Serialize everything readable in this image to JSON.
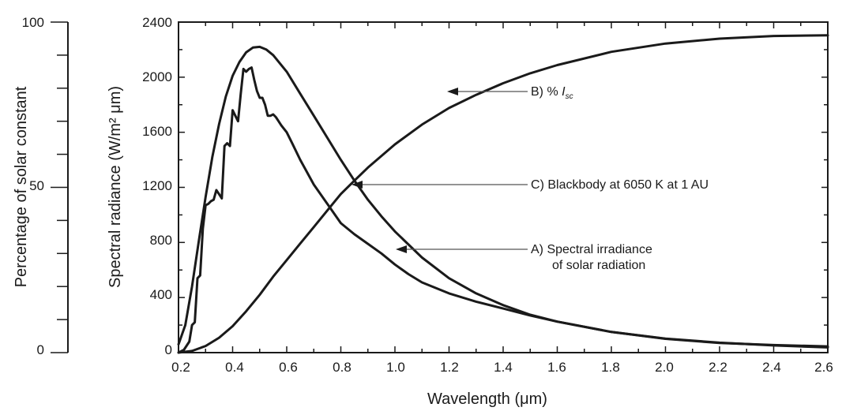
{
  "chart_data": {
    "type": "line",
    "xlabel": "Wavelength (μm)",
    "ylabel": "Spectral radiance (W/m² μm)",
    "ylabel_left": "Percentage of solar constant",
    "xlim": [
      0.2,
      2.6
    ],
    "ylim": [
      0,
      2400
    ],
    "ylim_left": [
      0,
      100
    ],
    "x_ticks": [
      "0.2",
      "0.4",
      "0.6",
      "0.8",
      "1.0",
      "1.2",
      "1.4",
      "1.6",
      "1.8",
      "2.0",
      "2.2",
      "2.4",
      "2.6"
    ],
    "y_ticks": [
      "0",
      "400",
      "800",
      "1200",
      "1600",
      "2000",
      "2400"
    ],
    "y_ticks_left": [
      "0",
      "50",
      "100"
    ],
    "grid": false,
    "series": [
      {
        "key": "solar",
        "name": "A) Spectral irradiance of solar radiation",
        "axis": "right",
        "x": [
          0.2,
          0.22,
          0.24,
          0.25,
          0.26,
          0.27,
          0.28,
          0.29,
          0.3,
          0.31,
          0.32,
          0.33,
          0.34,
          0.35,
          0.36,
          0.37,
          0.38,
          0.39,
          0.4,
          0.41,
          0.42,
          0.43,
          0.44,
          0.45,
          0.46,
          0.47,
          0.48,
          0.49,
          0.5,
          0.51,
          0.52,
          0.53,
          0.54,
          0.55,
          0.56,
          0.57,
          0.58,
          0.6,
          0.62,
          0.65,
          0.7,
          0.75,
          0.8,
          0.85,
          0.9,
          0.95,
          1.0,
          1.05,
          1.1,
          1.2,
          1.3,
          1.4,
          1.5,
          1.6,
          1.8,
          2.0,
          2.2,
          2.4,
          2.6
        ],
        "y": [
          0,
          20,
          80,
          200,
          220,
          540,
          560,
          900,
          1070,
          1080,
          1100,
          1110,
          1180,
          1150,
          1120,
          1500,
          1520,
          1500,
          1760,
          1720,
          1680,
          1880,
          2060,
          2040,
          2060,
          2070,
          1980,
          1900,
          1850,
          1850,
          1800,
          1720,
          1720,
          1730,
          1710,
          1680,
          1650,
          1600,
          1520,
          1400,
          1220,
          1080,
          940,
          860,
          790,
          720,
          640,
          570,
          510,
          430,
          370,
          320,
          270,
          225,
          150,
          100,
          70,
          55,
          45
        ]
      },
      {
        "key": "blackbody",
        "name": "C) Blackbody at 6050 K at 1 AU",
        "axis": "right",
        "x": [
          0.2,
          0.225,
          0.25,
          0.275,
          0.3,
          0.325,
          0.35,
          0.375,
          0.4,
          0.425,
          0.45,
          0.475,
          0.5,
          0.525,
          0.55,
          0.6,
          0.65,
          0.7,
          0.75,
          0.8,
          0.85,
          0.9,
          0.95,
          1.0,
          1.1,
          1.2,
          1.3,
          1.4,
          1.5,
          1.6,
          1.8,
          2.0,
          2.2,
          2.4,
          2.6
        ],
        "y": [
          60,
          200,
          480,
          810,
          1130,
          1420,
          1660,
          1860,
          2010,
          2110,
          2180,
          2215,
          2220,
          2200,
          2160,
          2040,
          1880,
          1720,
          1560,
          1400,
          1250,
          1110,
          990,
          880,
          690,
          540,
          430,
          345,
          275,
          225,
          150,
          102,
          72,
          52,
          38
        ]
      },
      {
        "key": "percent",
        "name": "B) % Isc",
        "axis": "left",
        "x": [
          0.2,
          0.25,
          0.3,
          0.35,
          0.4,
          0.45,
          0.5,
          0.55,
          0.6,
          0.65,
          0.7,
          0.75,
          0.8,
          0.85,
          0.9,
          1.0,
          1.1,
          1.2,
          1.3,
          1.4,
          1.5,
          1.6,
          1.8,
          2.0,
          2.2,
          2.4,
          2.6
        ],
        "y": [
          0,
          0.5,
          2,
          4.5,
          8,
          12.5,
          17.5,
          23,
          28,
          33,
          38,
          43,
          48,
          52,
          56,
          63,
          69,
          74,
          78,
          81.5,
          84.5,
          87,
          91,
          93.5,
          95,
          95.8,
          96
        ]
      }
    ],
    "annotations": [
      {
        "key": "b",
        "letter": "B",
        "text": ") % ",
        "symbol": "I",
        "subscript": "sc"
      },
      {
        "key": "c",
        "letter": "C",
        "text": ") Blackbody at 6050 K at 1 AU"
      },
      {
        "key": "a",
        "letter": "A",
        "text": ") Spectral irradiance",
        "text2": "of solar radiation"
      }
    ]
  }
}
